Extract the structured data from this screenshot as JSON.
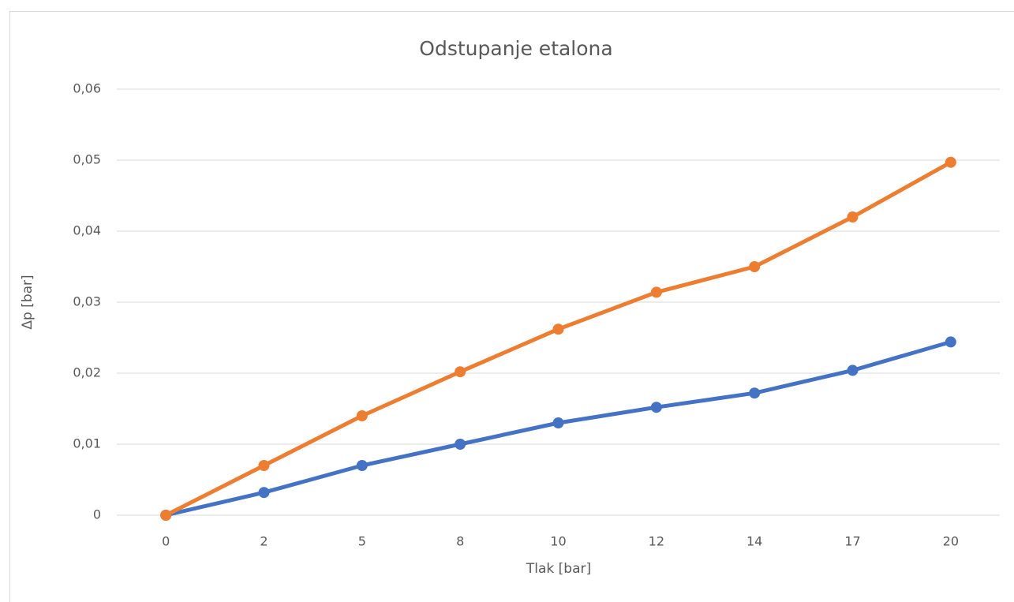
{
  "chart_data": {
    "type": "line",
    "title": "Odstupanje etalona",
    "x_label": "Tlak [bar]",
    "y_label": "Δp [bar]",
    "categories": [
      "0",
      "2",
      "5",
      "8",
      "10",
      "12",
      "14",
      "17",
      "20"
    ],
    "series": [
      {
        "color": "#4472c4",
        "values": [
          0,
          0.0032,
          0.007,
          0.01,
          0.013,
          0.0152,
          0.0172,
          0.0204,
          0.0244
        ]
      },
      {
        "color": "#ed7d31",
        "values": [
          0,
          0.007,
          0.014,
          0.0202,
          0.0262,
          0.0314,
          0.035,
          0.042,
          0.0497
        ]
      }
    ],
    "ylim": [
      0,
      0.06
    ],
    "yticks": [
      0,
      {
        "value": 0.01,
        "label": "0,01"
      },
      {
        "value": 0.02,
        "label": "0,02"
      },
      {
        "value": 0.03,
        "label": "0,03"
      },
      {
        "value": 0.04,
        "label": "0,04"
      },
      {
        "value": 0.05,
        "label": "0,05"
      },
      {
        "value": 0.06,
        "label": "0,06"
      }
    ],
    "grid": true
  }
}
